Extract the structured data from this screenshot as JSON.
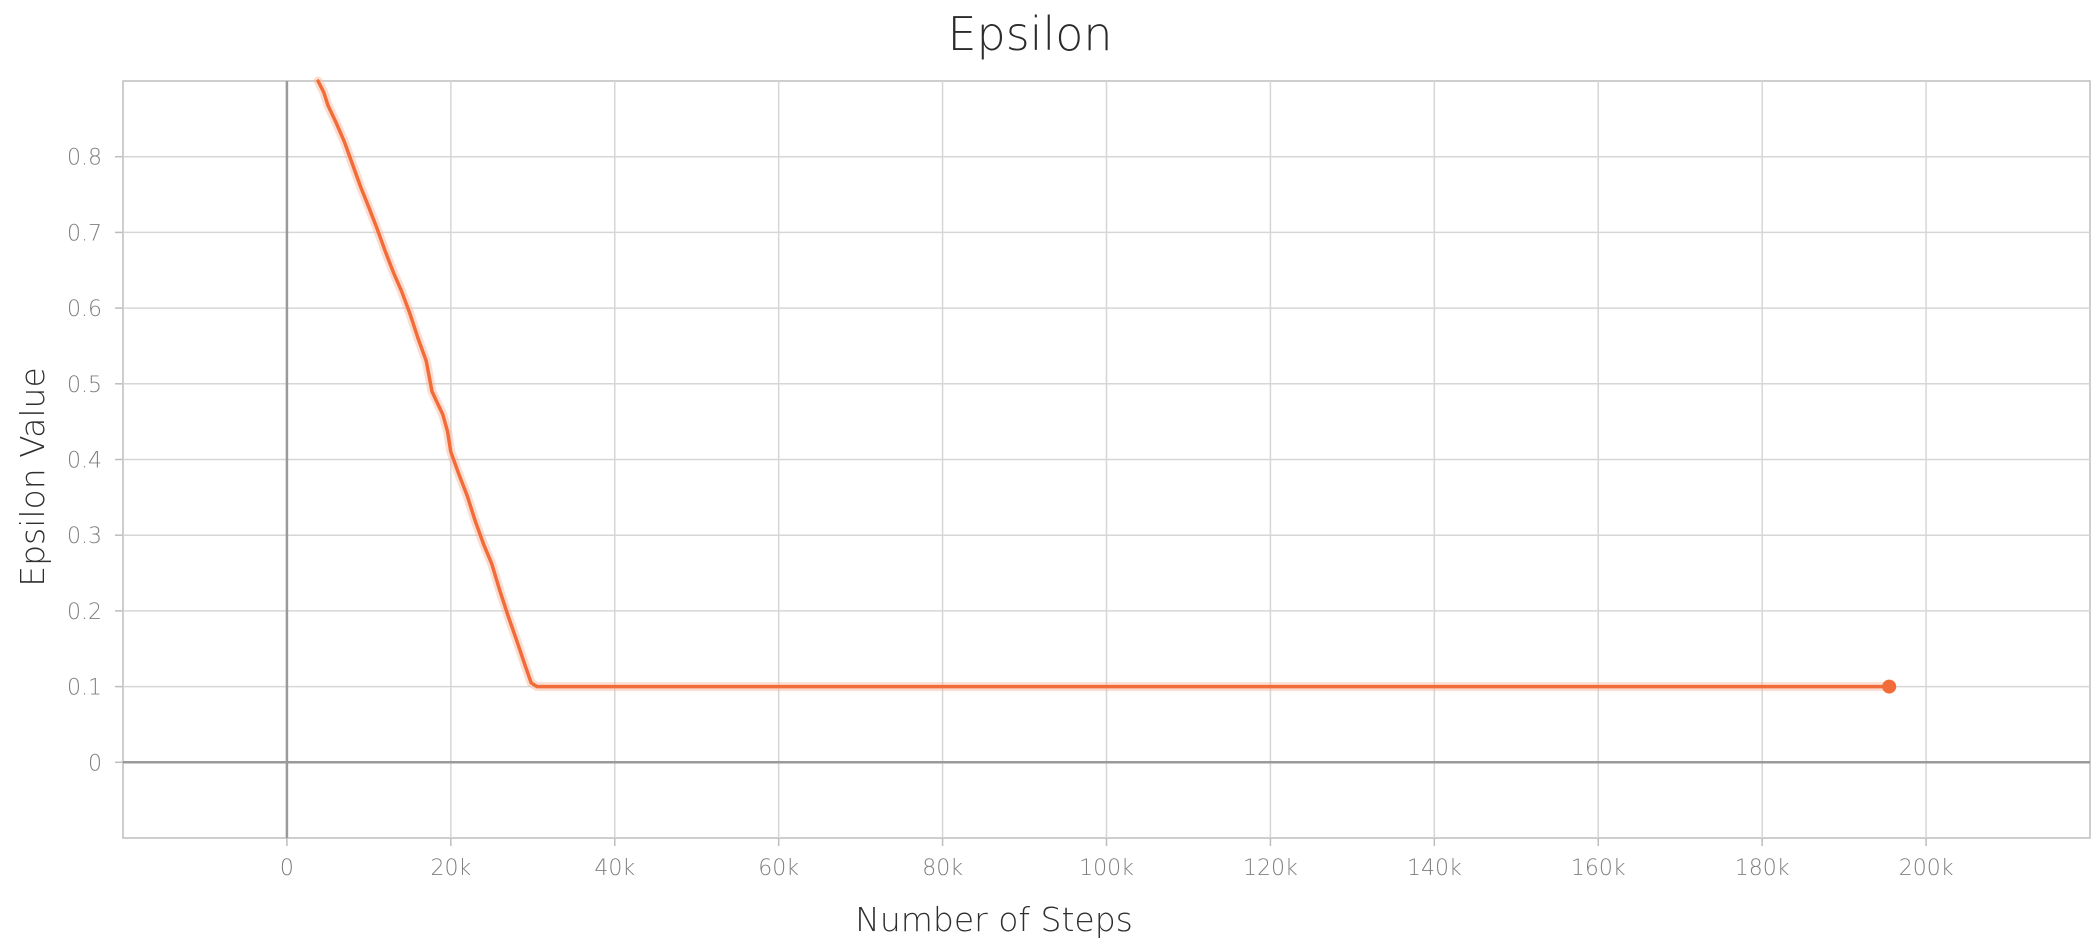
{
  "chart_data": {
    "type": "line",
    "title": "Epsilon",
    "xlabel": "Number of Steps",
    "ylabel": "Epsilon Value",
    "xlim": [
      -20000,
      220000
    ],
    "ylim": [
      -0.1,
      0.9
    ],
    "x_ticks": [
      0,
      20000,
      40000,
      60000,
      80000,
      100000,
      120000,
      140000,
      160000,
      180000,
      200000
    ],
    "x_tick_labels": [
      "0",
      "20k",
      "40k",
      "60k",
      "80k",
      "100k",
      "120k",
      "140k",
      "160k",
      "180k",
      "200k"
    ],
    "y_ticks": [
      0,
      0.1,
      0.2,
      0.3,
      0.4,
      0.5,
      0.6,
      0.7,
      0.8
    ],
    "y_tick_labels": [
      "0",
      "0.1",
      "0.2",
      "0.3",
      "0.4",
      "0.5",
      "0.6",
      "0.7",
      "0.8"
    ],
    "grid": true,
    "legend": "none",
    "colors": {
      "line": "#f26c3a",
      "halo": "#f6b39a",
      "grid": "#d6d6d6",
      "zero_axis": "#9a9a9a",
      "frame": "#bdbdbd"
    },
    "series": [
      {
        "values": [
          {
            "x": 3800,
            "y": 0.9
          },
          {
            "x": 4500,
            "y": 0.885
          },
          {
            "x": 5000,
            "y": 0.868
          },
          {
            "x": 6000,
            "y": 0.845
          },
          {
            "x": 7000,
            "y": 0.82
          },
          {
            "x": 8000,
            "y": 0.79
          },
          {
            "x": 9000,
            "y": 0.76
          },
          {
            "x": 10000,
            "y": 0.733
          },
          {
            "x": 11000,
            "y": 0.705
          },
          {
            "x": 12000,
            "y": 0.675
          },
          {
            "x": 13000,
            "y": 0.647
          },
          {
            "x": 14000,
            "y": 0.622
          },
          {
            "x": 15000,
            "y": 0.593
          },
          {
            "x": 16000,
            "y": 0.56
          },
          {
            "x": 17000,
            "y": 0.53
          },
          {
            "x": 17700,
            "y": 0.49
          },
          {
            "x": 18300,
            "y": 0.476
          },
          {
            "x": 19000,
            "y": 0.46
          },
          {
            "x": 19600,
            "y": 0.437
          },
          {
            "x": 20000,
            "y": 0.41
          },
          {
            "x": 21000,
            "y": 0.38
          },
          {
            "x": 22000,
            "y": 0.352
          },
          {
            "x": 23000,
            "y": 0.318
          },
          {
            "x": 24000,
            "y": 0.288
          },
          {
            "x": 25000,
            "y": 0.262
          },
          {
            "x": 26000,
            "y": 0.226
          },
          {
            "x": 27000,
            "y": 0.193
          },
          {
            "x": 28000,
            "y": 0.162
          },
          {
            "x": 29000,
            "y": 0.13
          },
          {
            "x": 29800,
            "y": 0.105
          },
          {
            "x": 30500,
            "y": 0.1
          },
          {
            "x": 60000,
            "y": 0.1
          },
          {
            "x": 100000,
            "y": 0.1
          },
          {
            "x": 150000,
            "y": 0.1
          },
          {
            "x": 195500,
            "y": 0.1
          }
        ]
      }
    ],
    "last_point": {
      "x": 195500,
      "y": 0.1
    }
  }
}
